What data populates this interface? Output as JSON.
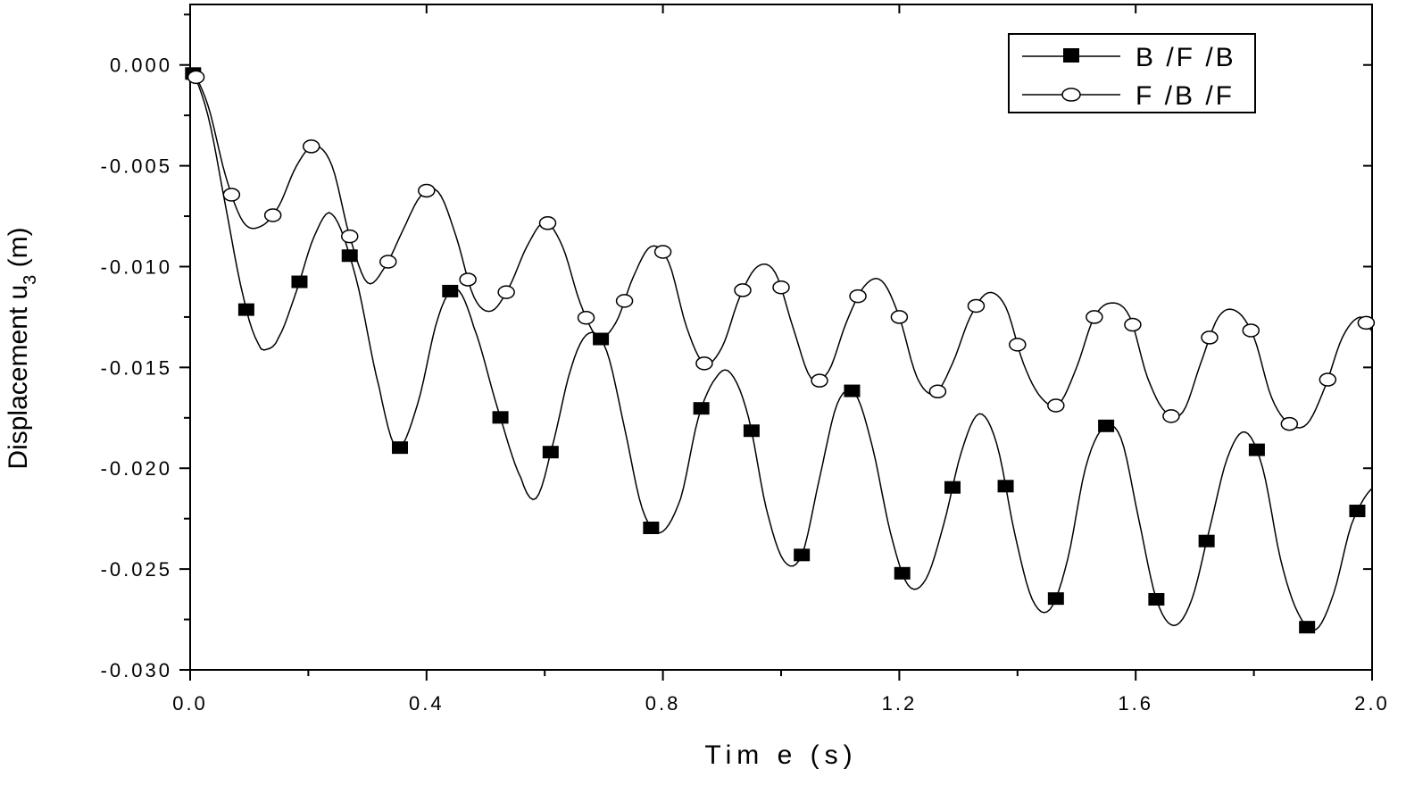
{
  "chart_data": {
    "type": "line",
    "xlabel": "Tim e  (s)",
    "ylabel": "Displacement u",
    "ylabel_subscript": "3",
    "ylabel_suffix": " (m)",
    "xlim": [
      0.0,
      2.0
    ],
    "ylim": [
      -0.03,
      0.003
    ],
    "xticks": [
      "0.0",
      "0.4",
      "0.8",
      "1.2",
      "1.6",
      "2.0"
    ],
    "xtick_values": [
      0.0,
      0.4,
      0.8,
      1.2,
      1.6,
      2.0
    ],
    "yticks": [
      "0.000",
      "-0.005",
      "-0.010",
      "-0.015",
      "-0.020",
      "-0.025",
      "-0.030"
    ],
    "ytick_values": [
      0.0,
      -0.005,
      -0.01,
      -0.015,
      -0.02,
      -0.025,
      -0.03
    ],
    "grid": false,
    "legend_position": "top-right",
    "series": [
      {
        "name": "B /F /B",
        "marker": "filled-square",
        "line_color": "#000000",
        "x": [
          0.0,
          0.03,
          0.06,
          0.09,
          0.115,
          0.13,
          0.15,
          0.18,
          0.21,
          0.24,
          0.28,
          0.32,
          0.35,
          0.385,
          0.42,
          0.45,
          0.48,
          0.52,
          0.56,
          0.585,
          0.61,
          0.645,
          0.675,
          0.705,
          0.735,
          0.765,
          0.795,
          0.83,
          0.86,
          0.89,
          0.915,
          0.945,
          0.975,
          1.005,
          1.035,
          1.065,
          1.095,
          1.125,
          1.155,
          1.185,
          1.215,
          1.245,
          1.275,
          1.305,
          1.335,
          1.365,
          1.395,
          1.425,
          1.455,
          1.485,
          1.515,
          1.545,
          1.575,
          1.605,
          1.635,
          1.665,
          1.695,
          1.725,
          1.755,
          1.785,
          1.815,
          1.845,
          1.875,
          1.905,
          1.935,
          1.965,
          2.0
        ],
        "y": [
          -0.0002,
          -0.0025,
          -0.007,
          -0.0115,
          -0.0138,
          -0.0141,
          -0.0135,
          -0.0112,
          -0.0085,
          -0.0074,
          -0.0105,
          -0.016,
          -0.019,
          -0.0168,
          -0.0125,
          -0.0111,
          -0.013,
          -0.017,
          -0.0205,
          -0.0215,
          -0.0192,
          -0.015,
          -0.0133,
          -0.0142,
          -0.018,
          -0.022,
          -0.0232,
          -0.0215,
          -0.0175,
          -0.0155,
          -0.0153,
          -0.0175,
          -0.022,
          -0.0246,
          -0.0243,
          -0.0205,
          -0.0168,
          -0.0163,
          -0.019,
          -0.0232,
          -0.0258,
          -0.0255,
          -0.0228,
          -0.0192,
          -0.0173,
          -0.0188,
          -0.0232,
          -0.0265,
          -0.027,
          -0.0245,
          -0.02,
          -0.018,
          -0.0185,
          -0.0225,
          -0.0265,
          -0.0278,
          -0.0265,
          -0.023,
          -0.0195,
          -0.0182,
          -0.02,
          -0.0245,
          -0.0272,
          -0.028,
          -0.0262,
          -0.0228,
          -0.021
        ]
      },
      {
        "name": "F /B /F",
        "marker": "open-circle",
        "line_color": "#000000",
        "x": [
          0.0,
          0.03,
          0.06,
          0.09,
          0.12,
          0.15,
          0.18,
          0.21,
          0.24,
          0.27,
          0.3,
          0.33,
          0.36,
          0.39,
          0.42,
          0.45,
          0.48,
          0.51,
          0.54,
          0.57,
          0.6,
          0.63,
          0.66,
          0.69,
          0.72,
          0.75,
          0.78,
          0.81,
          0.84,
          0.87,
          0.9,
          0.93,
          0.96,
          0.99,
          1.02,
          1.05,
          1.08,
          1.11,
          1.14,
          1.17,
          1.2,
          1.23,
          1.26,
          1.29,
          1.32,
          1.35,
          1.38,
          1.41,
          1.44,
          1.47,
          1.5,
          1.53,
          1.56,
          1.59,
          1.62,
          1.65,
          1.68,
          1.71,
          1.74,
          1.77,
          1.8,
          1.83,
          1.86,
          1.89,
          1.92,
          1.95,
          1.98,
          2.0
        ],
        "y": [
          -0.0002,
          -0.002,
          -0.0055,
          -0.0078,
          -0.008,
          -0.007,
          -0.005,
          -0.004,
          -0.005,
          -0.0085,
          -0.0108,
          -0.01,
          -0.0082,
          -0.0065,
          -0.0063,
          -0.0085,
          -0.0115,
          -0.0122,
          -0.011,
          -0.009,
          -0.0078,
          -0.009,
          -0.0118,
          -0.0135,
          -0.0128,
          -0.0105,
          -0.009,
          -0.0098,
          -0.013,
          -0.0148,
          -0.014,
          -0.0115,
          -0.01,
          -0.0103,
          -0.013,
          -0.0155,
          -0.0152,
          -0.0128,
          -0.011,
          -0.0107,
          -0.0125,
          -0.0155,
          -0.0163,
          -0.0148,
          -0.0125,
          -0.0113,
          -0.012,
          -0.0148,
          -0.0165,
          -0.0168,
          -0.015,
          -0.0125,
          -0.0118,
          -0.0125,
          -0.0155,
          -0.0172,
          -0.0172,
          -0.0148,
          -0.0125,
          -0.0122,
          -0.0135,
          -0.0165,
          -0.0178,
          -0.0178,
          -0.016,
          -0.0135,
          -0.0125,
          -0.0132
        ]
      }
    ],
    "marker_x": {
      "B /F /B": [
        0.005,
        0.095,
        0.185,
        0.27,
        0.355,
        0.44,
        0.525,
        0.61,
        0.695,
        0.78,
        0.865,
        0.95,
        1.035,
        1.12,
        1.205,
        1.29,
        1.38,
        1.465,
        1.55,
        1.635,
        1.72,
        1.805,
        1.89,
        1.975
      ],
      "F /B /F": [
        0.01,
        0.07,
        0.14,
        0.205,
        0.27,
        0.335,
        0.4,
        0.47,
        0.535,
        0.605,
        0.67,
        0.735,
        0.8,
        0.87,
        0.935,
        1.0,
        1.065,
        1.13,
        1.2,
        1.265,
        1.33,
        1.4,
        1.465,
        1.53,
        1.595,
        1.66,
        1.725,
        1.795,
        1.86,
        1.925,
        1.99
      ]
    }
  }
}
